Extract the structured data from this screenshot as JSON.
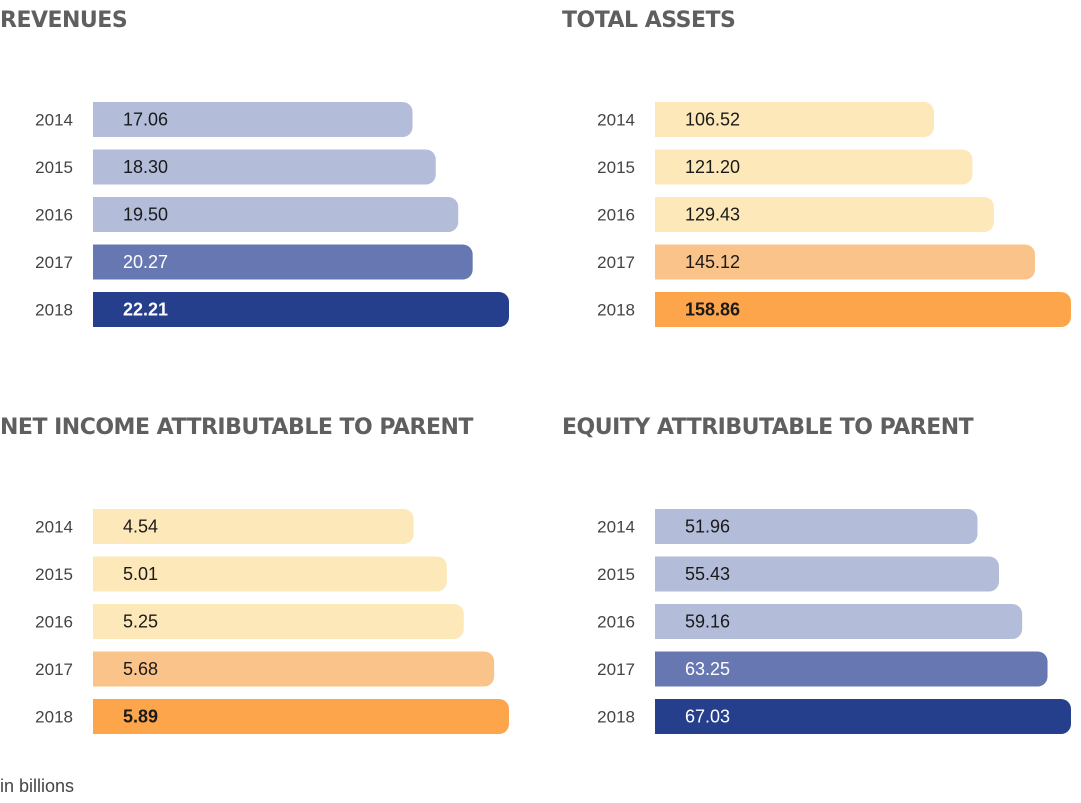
{
  "footnote": "in billions",
  "colors": {
    "blue_light": "#b3bcd9",
    "blue_mid": "#6677b1",
    "blue_dark": "#253f8c",
    "orange_light": "#fde8b9",
    "orange_mid": "#f9c389",
    "orange_dark": "#fda54b",
    "text_dark": "#1a1a1a",
    "text_light": "#ffffff"
  },
  "chart_data": [
    {
      "type": "bar",
      "orientation": "horizontal",
      "title": "REVENUES",
      "categories": [
        "2014",
        "2015",
        "2016",
        "2017",
        "2018"
      ],
      "values": [
        17.06,
        18.3,
        19.5,
        20.27,
        22.21
      ],
      "value_labels": [
        "17.06",
        "18.30",
        "19.50",
        "20.27",
        "22.21"
      ],
      "bar_colors": [
        "#b3bcd9",
        "#b3bcd9",
        "#b3bcd9",
        "#6677b1",
        "#253f8c"
      ],
      "label_colors": [
        "#1a1a1a",
        "#1a1a1a",
        "#1a1a1a",
        "#ffffff",
        "#ffffff"
      ],
      "label_bold": [
        false,
        false,
        false,
        false,
        true
      ]
    },
    {
      "type": "bar",
      "orientation": "horizontal",
      "title": "TOTAL ASSETS",
      "categories": [
        "2014",
        "2015",
        "2016",
        "2017",
        "2018"
      ],
      "values": [
        106.52,
        121.2,
        129.43,
        145.12,
        158.86
      ],
      "value_labels": [
        "106.52",
        "121.20",
        "129.43",
        "145.12",
        "158.86"
      ],
      "bar_colors": [
        "#fde8b9",
        "#fde8b9",
        "#fde8b9",
        "#f9c389",
        "#fda54b"
      ],
      "label_colors": [
        "#1a1a1a",
        "#1a1a1a",
        "#1a1a1a",
        "#1a1a1a",
        "#1a1a1a"
      ],
      "label_bold": [
        false,
        false,
        false,
        false,
        true
      ]
    },
    {
      "type": "bar",
      "orientation": "horizontal",
      "title": "NET INCOME ATTRIBUTABLE TO PARENT",
      "categories": [
        "2014",
        "2015",
        "2016",
        "2017",
        "2018"
      ],
      "values": [
        4.54,
        5.01,
        5.25,
        5.68,
        5.89
      ],
      "value_labels": [
        "4.54",
        "5.01",
        "5.25",
        "5.68",
        "5.89"
      ],
      "bar_colors": [
        "#fde8b9",
        "#fde8b9",
        "#fde8b9",
        "#f9c389",
        "#fda54b"
      ],
      "label_colors": [
        "#1a1a1a",
        "#1a1a1a",
        "#1a1a1a",
        "#1a1a1a",
        "#1a1a1a"
      ],
      "label_bold": [
        false,
        false,
        false,
        false,
        true
      ]
    },
    {
      "type": "bar",
      "orientation": "horizontal",
      "title": "EQUITY ATTRIBUTABLE TO PARENT",
      "categories": [
        "2014",
        "2015",
        "2016",
        "2017",
        "2018"
      ],
      "values": [
        51.96,
        55.43,
        59.16,
        63.25,
        67.03
      ],
      "value_labels": [
        "51.96",
        "55.43",
        "59.16",
        "63.25",
        "67.03"
      ],
      "bar_colors": [
        "#b3bcd9",
        "#b3bcd9",
        "#b3bcd9",
        "#6677b1",
        "#253f8c"
      ],
      "label_colors": [
        "#1a1a1a",
        "#1a1a1a",
        "#1a1a1a",
        "#ffffff",
        "#ffffff"
      ],
      "label_bold": [
        false,
        false,
        false,
        false,
        false
      ]
    }
  ]
}
